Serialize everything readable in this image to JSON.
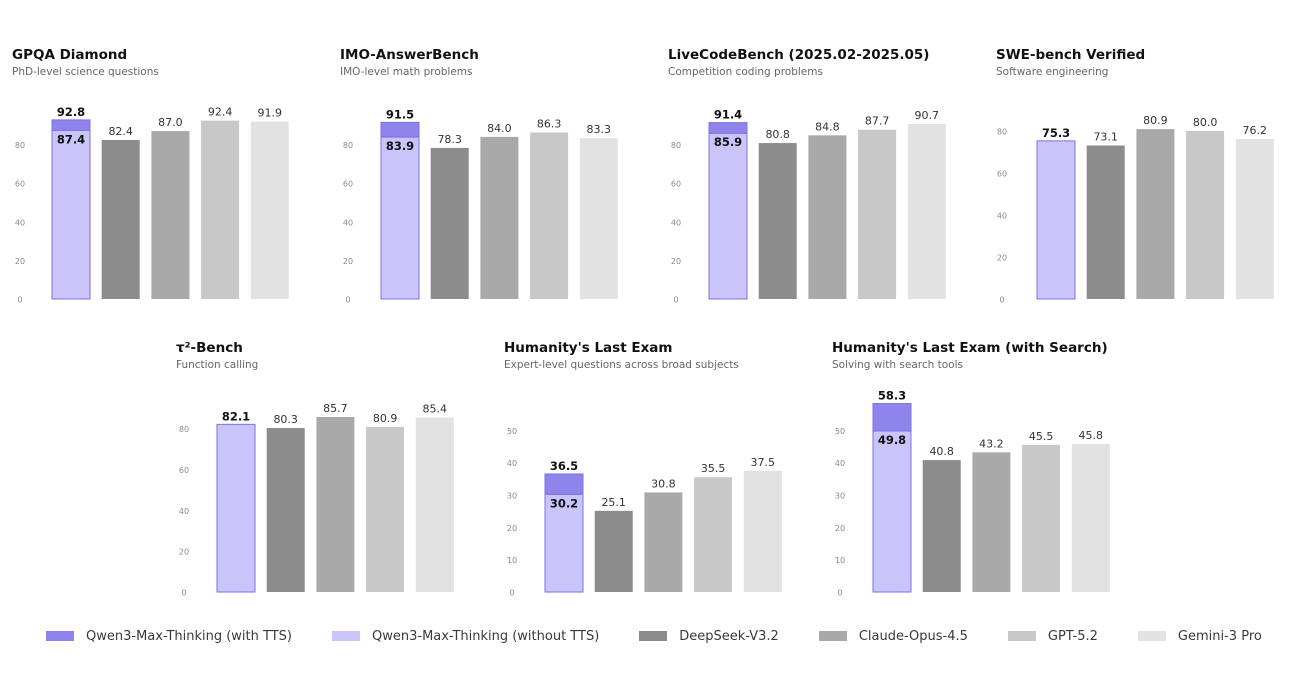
{
  "chart_data": [
    {
      "type": "bar",
      "title": "GPQA Diamond",
      "subtitle": "PhD-level science questions",
      "ylim": [
        0,
        100
      ],
      "yticks": [
        "0",
        "20",
        "40",
        "60",
        "80"
      ],
      "tts_total": 92.8,
      "series_values": [
        87.4,
        82.4,
        87.0,
        92.4,
        91.9
      ],
      "value_labels": [
        "87.4",
        "82.4",
        "87.0",
        "92.4",
        "91.9"
      ],
      "tts_label": "92.8"
    },
    {
      "type": "bar",
      "title": "IMO-AnswerBench",
      "subtitle": "IMO-level math problems",
      "ylim": [
        0,
        100
      ],
      "yticks": [
        "0",
        "20",
        "40",
        "60",
        "80"
      ],
      "tts_total": 91.5,
      "series_values": [
        83.9,
        78.3,
        84.0,
        86.3,
        83.3
      ],
      "value_labels": [
        "83.9",
        "78.3",
        "84.0",
        "86.3",
        "83.3"
      ],
      "tts_label": "91.5"
    },
    {
      "type": "bar",
      "title": "LiveCodeBench (2025.02-2025.05)",
      "subtitle": "Competition coding problems",
      "ylim": [
        0,
        100
      ],
      "yticks": [
        "0",
        "20",
        "40",
        "60",
        "80"
      ],
      "tts_total": 91.4,
      "series_values": [
        85.9,
        80.8,
        84.8,
        87.7,
        90.7
      ],
      "value_labels": [
        "85.9",
        "80.8",
        "84.8",
        "87.7",
        "90.7"
      ],
      "tts_label": "91.4"
    },
    {
      "type": "bar",
      "title": "SWE-bench Verified",
      "subtitle": "Software engineering",
      "ylim": [
        0,
        90
      ],
      "yticks": [
        "0",
        "20",
        "40",
        "60",
        "80"
      ],
      "tts_total": null,
      "series_values": [
        75.3,
        73.1,
        80.9,
        80.0,
        76.2
      ],
      "value_labels": [
        "75.3",
        "73.1",
        "80.9",
        "80.0",
        "76.2"
      ],
      "tts_label": null
    },
    {
      "type": "bar",
      "title": "τ²-Bench",
      "subtitle": "Function calling",
      "ylim": [
        0,
        95
      ],
      "yticks": [
        "0",
        "20",
        "40",
        "60",
        "80"
      ],
      "tts_total": null,
      "series_values": [
        82.1,
        80.3,
        85.7,
        80.9,
        85.4
      ],
      "value_labels": [
        "82.1",
        "80.3",
        "85.7",
        "80.9",
        "85.4"
      ],
      "tts_label": null
    },
    {
      "type": "bar",
      "title": "Humanity's Last Exam",
      "subtitle": "Expert-level questions across broad subjects",
      "ylim": [
        0,
        60
      ],
      "yticks": [
        "0",
        "10",
        "20",
        "30",
        "40",
        "50"
      ],
      "tts_total": 36.5,
      "series_values": [
        30.2,
        25.1,
        30.8,
        35.5,
        37.5
      ],
      "value_labels": [
        "30.2",
        "25.1",
        "30.8",
        "35.5",
        "37.5"
      ],
      "tts_label": "36.5"
    },
    {
      "type": "bar",
      "title": "Humanity's Last Exam (with Search)",
      "subtitle": "Solving with search tools",
      "ylim": [
        0,
        60
      ],
      "yticks": [
        "0",
        "10",
        "20",
        "30",
        "40",
        "50"
      ],
      "tts_total": 58.3,
      "series_values": [
        49.8,
        40.8,
        43.2,
        45.5,
        45.8
      ],
      "value_labels": [
        "49.8",
        "40.8",
        "43.2",
        "45.5",
        "45.8"
      ],
      "tts_label": "58.3"
    }
  ],
  "legend": [
    {
      "label": "Qwen3-Max-Thinking (with TTS)",
      "color": "#8f84ec"
    },
    {
      "label": "Qwen3-Max-Thinking (without TTS)",
      "color": "#c9c5fa"
    },
    {
      "label": "DeepSeek-V3.2",
      "color": "#8c8c8c"
    },
    {
      "label": "Claude-Opus-4.5",
      "color": "#a9a9a9"
    },
    {
      "label": "GPT-5.2",
      "color": "#c8c8c8"
    },
    {
      "label": "Gemini-3 Pro",
      "color": "#e2e2e2"
    }
  ],
  "colors": {
    "tts": "#8f84ec",
    "qwen": "#c9c5fa",
    "qwen_border": "#7d72e0",
    "others": [
      "#8c8c8c",
      "#a9a9a9",
      "#c8c8c8",
      "#e2e2e2"
    ]
  }
}
